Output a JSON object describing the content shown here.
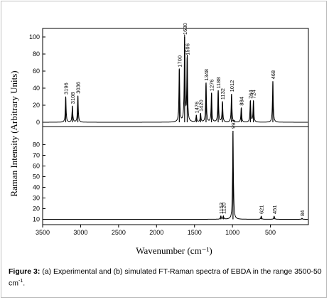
{
  "figure": {
    "caption_label": "Figure 3:",
    "caption_text": " (a) Experimental and (b) simulated FT-Raman spectra of EBDA in the range 3500-50 cm",
    "caption_sup": "-1",
    "caption_end": "."
  },
  "chart_data": [
    {
      "type": "line",
      "panel": "a",
      "xlabel": "Wavenumber (cm⁻¹)",
      "ylabel": "Raman Intensity (Arbitrary Units)",
      "xlim": [
        3500,
        0
      ],
      "ylim": [
        -5,
        110
      ],
      "y_ticks": [
        0,
        20,
        40,
        60,
        80,
        100
      ],
      "color": "#000000",
      "peaks": [
        {
          "x": 3196,
          "y": 30,
          "label": "3196"
        },
        {
          "x": 3108,
          "y": 19,
          "label": "3108"
        },
        {
          "x": 3036,
          "y": 31,
          "label": "3036"
        },
        {
          "x": 1700,
          "y": 62,
          "label": "1700"
        },
        {
          "x": 1630,
          "y": 100,
          "label": "1630"
        },
        {
          "x": 1596,
          "y": 76,
          "label": "1596"
        },
        {
          "x": 1476,
          "y": 8,
          "label": "1476"
        },
        {
          "x": 1420,
          "y": 10,
          "label": "1420"
        },
        {
          "x": 1348,
          "y": 46,
          "label": "1348"
        },
        {
          "x": 1276,
          "y": 34,
          "label": "1276"
        },
        {
          "x": 1188,
          "y": 37,
          "label": "1188"
        },
        {
          "x": 1132,
          "y": 24,
          "label": "1132"
        },
        {
          "x": 1012,
          "y": 33,
          "label": "1012"
        },
        {
          "x": 884,
          "y": 17,
          "label": "884"
        },
        {
          "x": 764,
          "y": 25,
          "label": "764"
        },
        {
          "x": 724,
          "y": 25,
          "label": "724"
        },
        {
          "x": 468,
          "y": 48,
          "label": "468"
        }
      ]
    },
    {
      "type": "line",
      "panel": "b",
      "xlim": [
        3500,
        0
      ],
      "ylim": [
        5,
        97
      ],
      "y_ticks": [
        10,
        20,
        30,
        40,
        50,
        60,
        70,
        80
      ],
      "x_ticks": [
        3500,
        3000,
        2500,
        2000,
        1500,
        1000,
        500
      ],
      "baseline": 10,
      "color": "#000000",
      "peaks": [
        {
          "x": 1153,
          "y": 13,
          "label": "1153"
        },
        {
          "x": 1120,
          "y": 13,
          "label": "1120"
        },
        {
          "x": 993,
          "y": 93,
          "label": "993"
        },
        {
          "x": 621,
          "y": 13,
          "label": "621"
        },
        {
          "x": 451,
          "y": 13,
          "label": "451"
        },
        {
          "x": 84,
          "y": 11,
          "label": "84"
        }
      ]
    }
  ]
}
